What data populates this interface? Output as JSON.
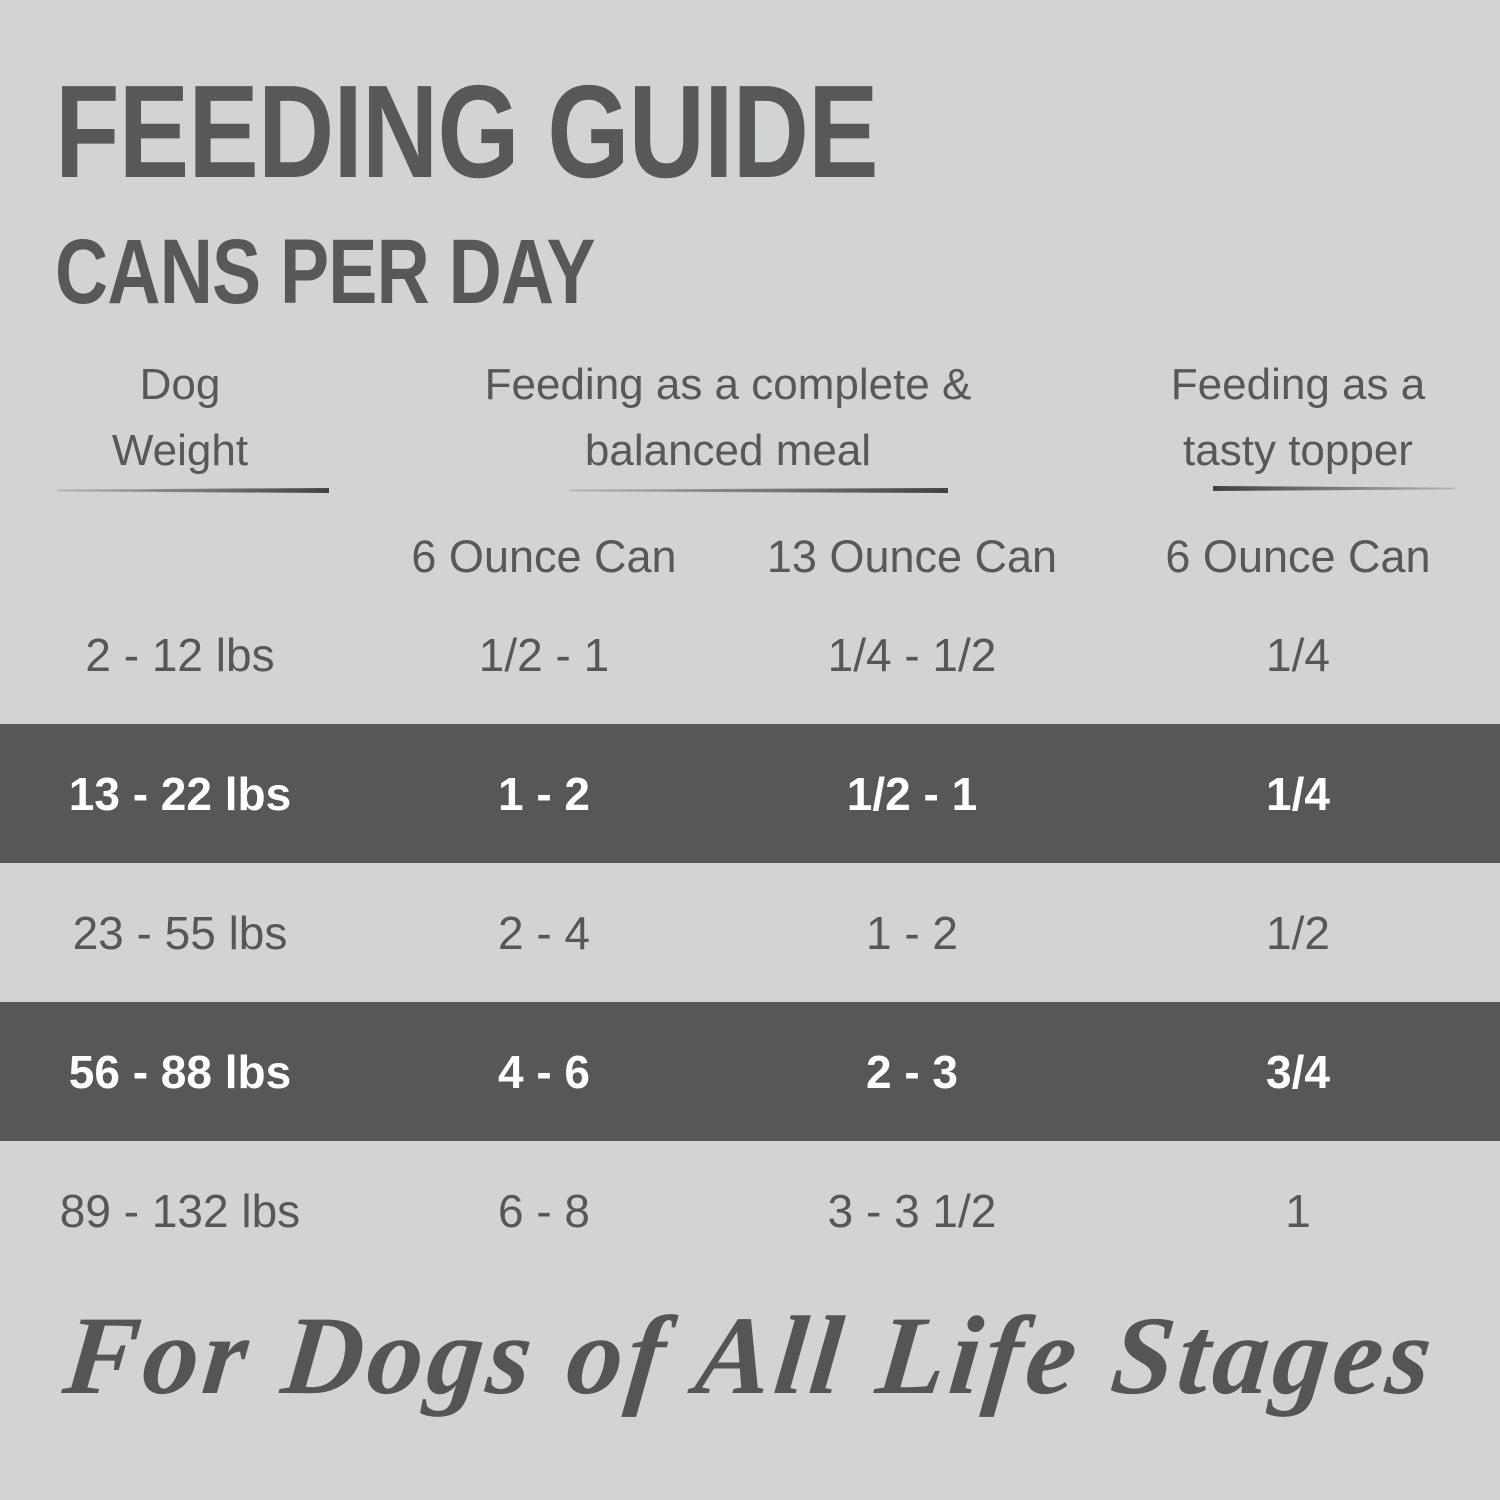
{
  "title": "FEEDING GUIDE",
  "subtitle": "CANS PER DAY",
  "table": {
    "columns": {
      "weight_header": "Dog Weight",
      "complete_header": "Feeding as a complete & balanced meal",
      "topper_header": "Feeding as a tasty topper",
      "subheaders": [
        "6 Ounce Can",
        "13 Ounce Can",
        "6 Ounce Can"
      ]
    },
    "rows": [
      {
        "weight": "2 - 12 lbs",
        "values": [
          "1/2 - 1",
          "1/4 - 1/2",
          "1/4"
        ],
        "highlighted": false
      },
      {
        "weight": "13 - 22 lbs",
        "values": [
          "1 - 2",
          "1/2 - 1",
          "1/4"
        ],
        "highlighted": true
      },
      {
        "weight": "23 - 55 lbs",
        "values": [
          "2 - 4",
          "1 - 2",
          "1/2"
        ],
        "highlighted": false
      },
      {
        "weight": "56 - 88 lbs",
        "values": [
          "4 - 6",
          "2 - 3",
          "3/4"
        ],
        "highlighted": true
      },
      {
        "weight": "89 - 132 lbs",
        "values": [
          "6 - 8",
          "3 - 3 1/2",
          "1"
        ],
        "highlighted": false
      }
    ]
  },
  "footer": "For Dogs of All Life Stages",
  "colors": {
    "background": "#d2d3d4",
    "ink": "#58585a",
    "highlight_row_bg": "#575659",
    "highlight_row_text": "#ffffff"
  }
}
